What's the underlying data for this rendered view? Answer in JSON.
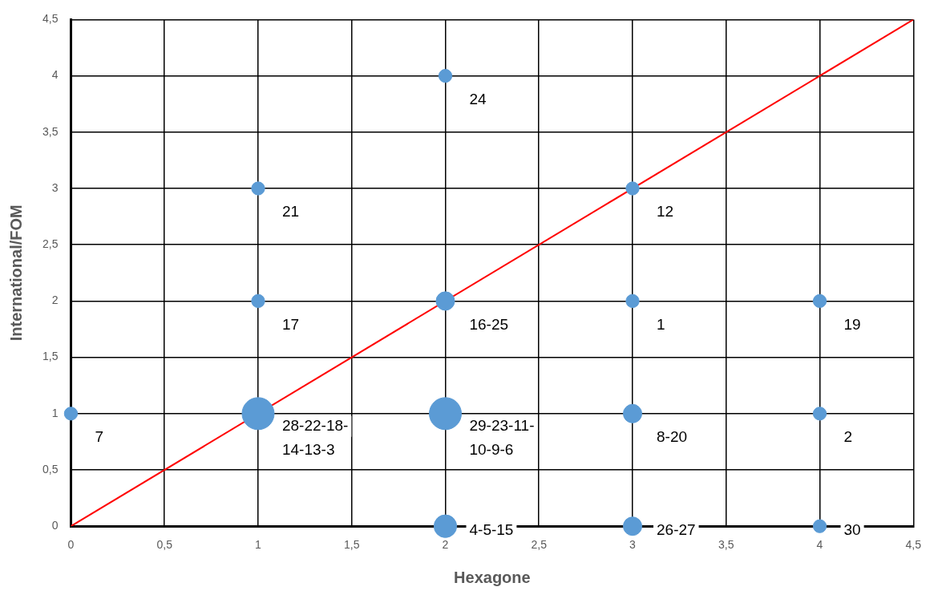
{
  "chart_data": {
    "type": "bubble",
    "xlabel": "Hexagone",
    "ylabel": "International/FOM",
    "series": [
      {
        "type": "bubble",
        "color": "#5b9bd5",
        "x": [
          0,
          1,
          2,
          2,
          3,
          4,
          1,
          2,
          3,
          4,
          1,
          3,
          2,
          3,
          4
        ],
        "values": [
          1,
          1,
          1,
          0,
          0,
          0,
          2,
          2,
          2,
          2,
          3,
          3,
          4,
          1,
          1
        ],
        "sizes": [
          0.167,
          1,
          1,
          0.5,
          0.333,
          0.167,
          0.167,
          0.333,
          0.167,
          0.167,
          0.167,
          0.167,
          0.167,
          0.333,
          0.167
        ]
      },
      {
        "type": "line",
        "color": "#ff0000",
        "x": [
          0,
          4.5
        ],
        "values": [
          0,
          4.5
        ]
      }
    ],
    "annotations": [
      {
        "text": "7",
        "x": 0,
        "y": 1
      },
      {
        "text": "28-22-18-14-13-3",
        "x": 1,
        "y": 1
      },
      {
        "text": "29-23-11-10-9-6",
        "x": 2,
        "y": 1
      },
      {
        "text": "4-5-15",
        "x": 2,
        "y": 0
      },
      {
        "text": "26-27",
        "x": 3,
        "y": 0
      },
      {
        "text": "30",
        "x": 4,
        "y": 0
      },
      {
        "text": "17",
        "x": 1,
        "y": 2
      },
      {
        "text": "16-25",
        "x": 2,
        "y": 2
      },
      {
        "text": "1",
        "x": 3,
        "y": 2
      },
      {
        "text": "19",
        "x": 4,
        "y": 2
      },
      {
        "text": "21",
        "x": 1,
        "y": 3
      },
      {
        "text": "12",
        "x": 3,
        "y": 3
      },
      {
        "text": "24",
        "x": 2,
        "y": 4
      },
      {
        "text": "8-20",
        "x": 3,
        "y": 1
      },
      {
        "text": "2",
        "x": 4,
        "y": 1
      }
    ],
    "xlim": [
      0,
      4.5
    ],
    "xticks": [
      0,
      {
        "value": 0.5,
        "label": "0,5"
      },
      1,
      {
        "value": 1.5,
        "label": "1,5"
      },
      2,
      {
        "value": 2.5,
        "label": "2,5"
      },
      3,
      {
        "value": 3.5,
        "label": "3,5"
      },
      4,
      {
        "value": 4.5,
        "label": "4,5"
      }
    ],
    "ylim": [
      0,
      4.5
    ],
    "yticks": [
      0,
      {
        "value": 0.5,
        "label": "0,5"
      },
      1,
      {
        "value": 1.5,
        "label": "1,5"
      },
      2,
      {
        "value": 2.5,
        "label": "2,5"
      },
      3,
      {
        "value": 3.5,
        "label": "3,5"
      },
      4,
      {
        "value": 4.5,
        "label": "4,5"
      }
    ],
    "grid": true,
    "legend": false
  }
}
